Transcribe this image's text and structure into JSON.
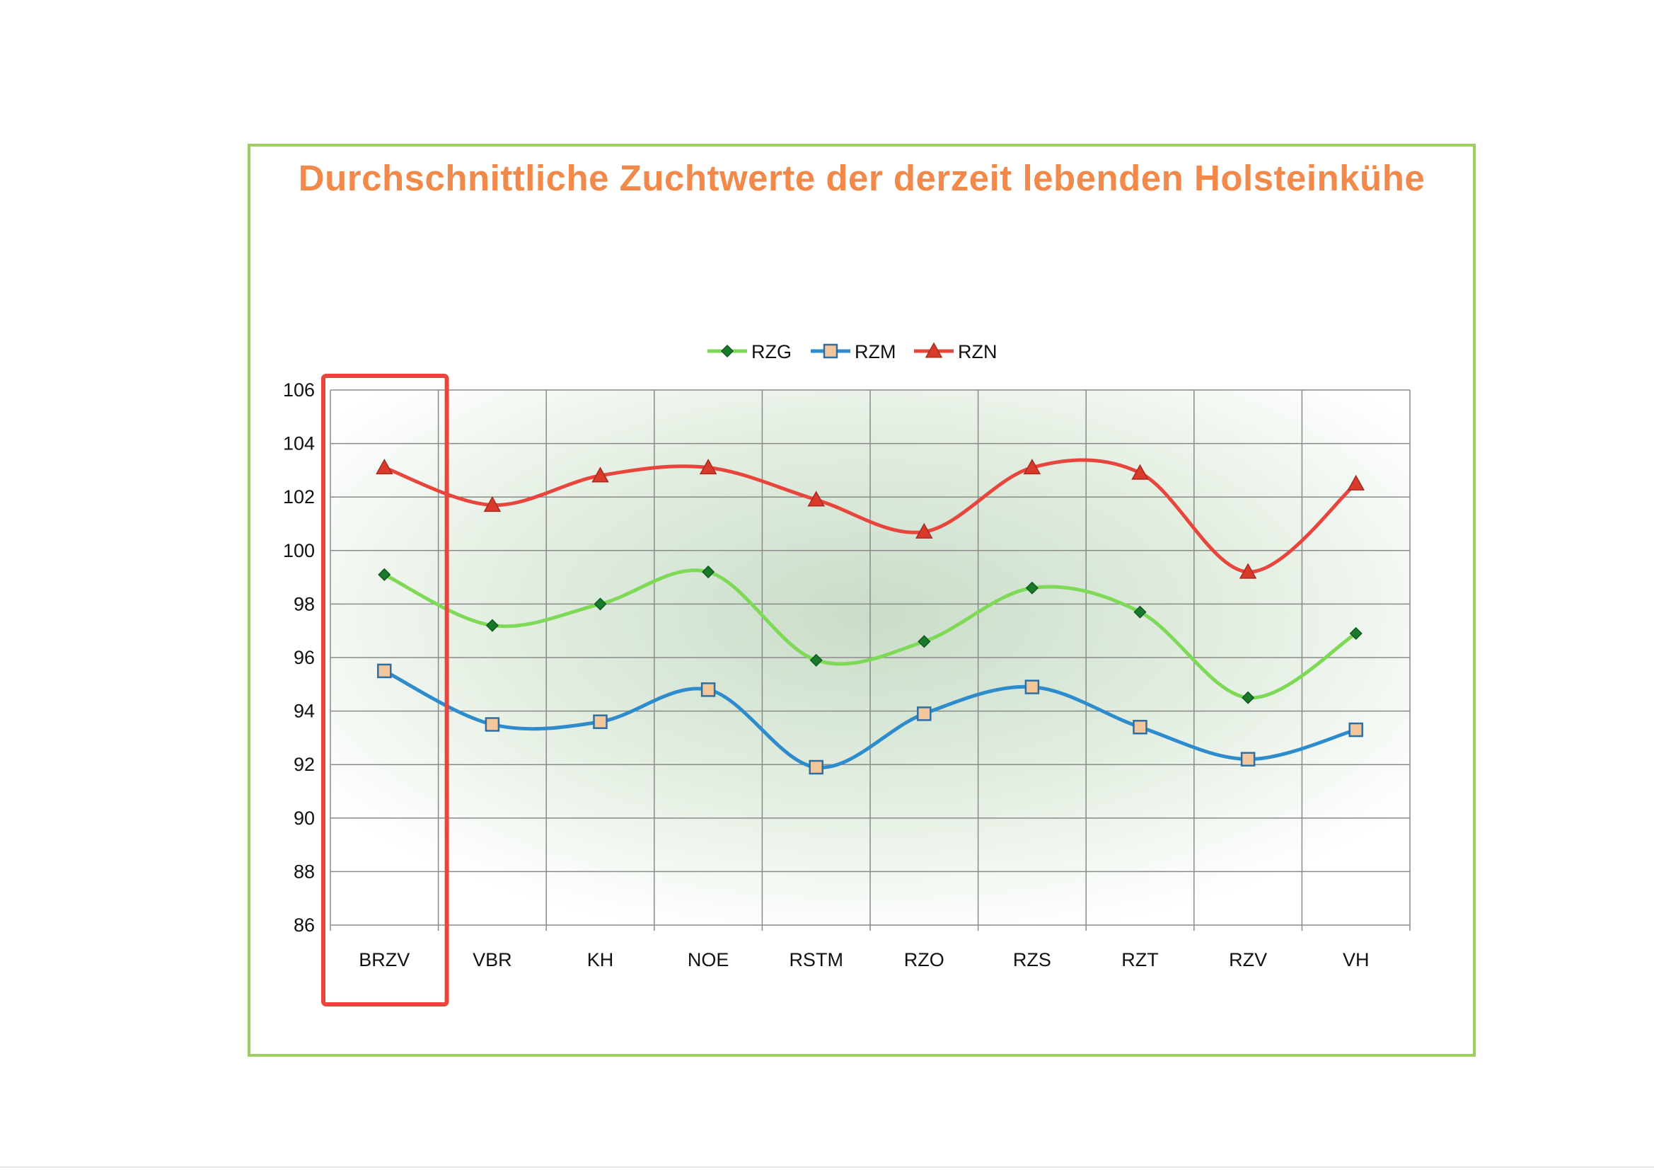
{
  "chart_data": {
    "type": "line",
    "title": "Durchschnittliche Zuchtwerte der derzeit lebenden Holsteinkühe",
    "xlabel": "",
    "ylabel": "",
    "categories": [
      "BRZV",
      "VBR",
      "KH",
      "NOE",
      "RSTM",
      "RZO",
      "RZS",
      "RZT",
      "RZV",
      "VH"
    ],
    "ylim": [
      86,
      106
    ],
    "yticks": [
      "86",
      "88",
      "90",
      "92",
      "94",
      "96",
      "98",
      "100",
      "102",
      "104",
      "106"
    ],
    "grid": true,
    "legend_position": "top",
    "highlighted_category": "BRZV",
    "series": [
      {
        "name": "RZG",
        "color": "#7ed957",
        "marker": "diamond",
        "marker_color": "#1a7a2c",
        "values": [
          99.1,
          97.2,
          98.0,
          99.2,
          95.9,
          96.6,
          98.6,
          97.7,
          94.5,
          96.9
        ]
      },
      {
        "name": "RZM",
        "color": "#2e8ccc",
        "marker": "square",
        "marker_color": "#f2c79b",
        "values": [
          95.5,
          93.5,
          93.6,
          94.8,
          91.9,
          93.9,
          94.9,
          93.4,
          92.2,
          93.3
        ]
      },
      {
        "name": "RZN",
        "color": "#e8453c",
        "marker": "triangle",
        "marker_color": "#d93a2b",
        "values": [
          103.1,
          101.7,
          102.8,
          103.1,
          101.9,
          100.7,
          103.1,
          102.9,
          99.2,
          102.5
        ]
      }
    ]
  },
  "colors": {
    "frame_border": "#9ccf5e",
    "title": "#f0894a",
    "grid": "#8a8a8a",
    "highlight_box": "#e8453c"
  }
}
